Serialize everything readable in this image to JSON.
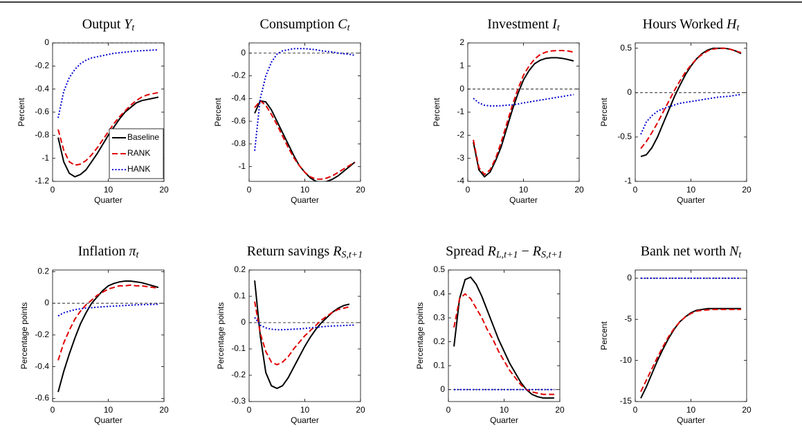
{
  "chart_data": [
    {
      "type": "line",
      "title": [
        {
          "text": "Output ",
          "style": "normal"
        },
        {
          "text": "Y",
          "style": "italic"
        },
        {
          "text": "t",
          "style": "sub"
        }
      ],
      "xlabel": "Quarter",
      "ylabel": "Percent",
      "x": [
        1,
        2,
        3,
        4,
        5,
        6,
        7,
        8,
        9,
        10,
        11,
        12,
        13,
        14,
        15,
        16,
        17,
        18,
        19
      ],
      "xlim": [
        0,
        20
      ],
      "xticks": [
        0,
        10,
        20
      ],
      "ylim": [
        -1.2,
        0
      ],
      "yticks": [
        -1.2,
        -1,
        -0.8,
        -0.6,
        -0.4,
        -0.2,
        0
      ],
      "legend": "lower right",
      "series": [
        {
          "name": "Baseline",
          "color": "#000000",
          "dash": "solid",
          "values": [
            -0.82,
            -1.03,
            -1.13,
            -1.16,
            -1.14,
            -1.1,
            -1.03,
            -0.96,
            -0.88,
            -0.8,
            -0.73,
            -0.66,
            -0.6,
            -0.56,
            -0.52,
            -0.5,
            -0.49,
            -0.48,
            -0.47
          ]
        },
        {
          "name": "RANK",
          "color": "#e00000",
          "dash": "dashed",
          "values": [
            -0.75,
            -0.93,
            -1.03,
            -1.06,
            -1.05,
            -1.02,
            -0.97,
            -0.91,
            -0.84,
            -0.77,
            -0.7,
            -0.64,
            -0.59,
            -0.54,
            -0.5,
            -0.47,
            -0.45,
            -0.44,
            -0.43
          ]
        },
        {
          "name": "HANK",
          "color": "#0000d0",
          "dash": "dotted",
          "values": [
            -0.65,
            -0.42,
            -0.3,
            -0.23,
            -0.18,
            -0.15,
            -0.13,
            -0.12,
            -0.11,
            -0.1,
            -0.09,
            -0.085,
            -0.08,
            -0.075,
            -0.07,
            -0.067,
            -0.065,
            -0.062,
            -0.06
          ]
        }
      ]
    },
    {
      "type": "line",
      "title": [
        {
          "text": "Consumption ",
          "style": "normal"
        },
        {
          "text": "C",
          "style": "italic"
        },
        {
          "text": "t",
          "style": "sub"
        }
      ],
      "xlabel": "Quarter",
      "ylabel": "Percent",
      "x": [
        1,
        2,
        3,
        4,
        5,
        6,
        7,
        8,
        9,
        10,
        11,
        12,
        13,
        14,
        15,
        16,
        17,
        18,
        19
      ],
      "xlim": [
        0,
        20
      ],
      "xticks": [
        0,
        10,
        20
      ],
      "ylim": [
        -1.13,
        0.09
      ],
      "yticks": [
        -1,
        -0.8,
        -0.6,
        -0.4,
        -0.2,
        0
      ],
      "series": [
        {
          "name": "Baseline",
          "color": "#000000",
          "dash": "solid",
          "values": [
            -0.53,
            -0.42,
            -0.43,
            -0.5,
            -0.6,
            -0.7,
            -0.8,
            -0.9,
            -0.99,
            -1.05,
            -1.1,
            -1.13,
            -1.14,
            -1.13,
            -1.11,
            -1.08,
            -1.04,
            -1.0,
            -0.96
          ]
        },
        {
          "name": "RANK",
          "color": "#e00000",
          "dash": "dashed",
          "values": [
            -0.48,
            -0.42,
            -0.46,
            -0.54,
            -0.63,
            -0.73,
            -0.83,
            -0.92,
            -0.99,
            -1.05,
            -1.09,
            -1.11,
            -1.11,
            -1.1,
            -1.08,
            -1.05,
            -1.02,
            -0.99,
            -0.96
          ]
        },
        {
          "name": "HANK",
          "color": "#0000d0",
          "dash": "dotted",
          "values": [
            -0.86,
            -0.4,
            -0.2,
            -0.08,
            -0.01,
            0.02,
            0.03,
            0.04,
            0.04,
            0.04,
            0.035,
            0.03,
            0.02,
            0.015,
            0.01,
            0.0,
            -0.005,
            -0.01,
            -0.02
          ]
        }
      ]
    },
    {
      "type": "line",
      "title": [
        {
          "text": "Investment ",
          "style": "normal"
        },
        {
          "text": "I",
          "style": "italic"
        },
        {
          "text": "t",
          "style": "sub"
        }
      ],
      "xlabel": "Quarter",
      "ylabel": "Percent",
      "x": [
        1,
        2,
        3,
        4,
        5,
        6,
        7,
        8,
        9,
        10,
        11,
        12,
        13,
        14,
        15,
        16,
        17,
        18,
        19
      ],
      "xlim": [
        0,
        20
      ],
      "xticks": [
        0,
        10,
        20
      ],
      "ylim": [
        -4,
        2
      ],
      "yticks": [
        -4,
        -3,
        -2,
        -1,
        0,
        1,
        2
      ],
      "series": [
        {
          "name": "Baseline",
          "color": "#000000",
          "dash": "solid",
          "values": [
            -2.3,
            -3.5,
            -3.8,
            -3.6,
            -3.1,
            -2.5,
            -1.7,
            -0.9,
            -0.2,
            0.4,
            0.8,
            1.1,
            1.25,
            1.33,
            1.36,
            1.36,
            1.33,
            1.28,
            1.22
          ]
        },
        {
          "name": "RANK",
          "color": "#e00000",
          "dash": "dashed",
          "values": [
            -2.2,
            -3.4,
            -3.7,
            -3.5,
            -3.0,
            -2.3,
            -1.5,
            -0.7,
            0.0,
            0.6,
            1.0,
            1.3,
            1.5,
            1.6,
            1.65,
            1.67,
            1.67,
            1.65,
            1.6
          ]
        },
        {
          "name": "HANK",
          "color": "#0000d0",
          "dash": "dotted",
          "values": [
            -0.4,
            -0.6,
            -0.7,
            -0.73,
            -0.73,
            -0.72,
            -0.7,
            -0.68,
            -0.65,
            -0.6,
            -0.56,
            -0.52,
            -0.48,
            -0.44,
            -0.4,
            -0.36,
            -0.32,
            -0.28,
            -0.24
          ]
        }
      ]
    },
    {
      "type": "line",
      "title": [
        {
          "text": "Hours Worked ",
          "style": "normal"
        },
        {
          "text": "H",
          "style": "italic"
        },
        {
          "text": "t",
          "style": "sub"
        }
      ],
      "xlabel": "Quarter",
      "ylabel": "Percent",
      "x": [
        1,
        2,
        3,
        4,
        5,
        6,
        7,
        8,
        9,
        10,
        11,
        12,
        13,
        14,
        15,
        16,
        17,
        18,
        19
      ],
      "xlim": [
        0,
        20
      ],
      "xticks": [
        0,
        10,
        20
      ],
      "ylim": [
        -1,
        0.56
      ],
      "yticks": [
        -1,
        -0.5,
        0,
        0.5
      ],
      "series": [
        {
          "name": "Baseline",
          "color": "#000000",
          "dash": "solid",
          "values": [
            -0.72,
            -0.7,
            -0.62,
            -0.5,
            -0.35,
            -0.2,
            -0.05,
            0.08,
            0.2,
            0.3,
            0.38,
            0.44,
            0.48,
            0.5,
            0.5,
            0.5,
            0.49,
            0.47,
            0.44
          ]
        },
        {
          "name": "RANK",
          "color": "#e00000",
          "dash": "dashed",
          "values": [
            -0.63,
            -0.55,
            -0.45,
            -0.34,
            -0.22,
            -0.1,
            0.02,
            0.13,
            0.23,
            0.31,
            0.38,
            0.43,
            0.47,
            0.49,
            0.5,
            0.5,
            0.49,
            0.47,
            0.45
          ]
        },
        {
          "name": "HANK",
          "color": "#0000d0",
          "dash": "dotted",
          "values": [
            -0.47,
            -0.33,
            -0.26,
            -0.21,
            -0.18,
            -0.16,
            -0.14,
            -0.12,
            -0.11,
            -0.1,
            -0.09,
            -0.08,
            -0.07,
            -0.06,
            -0.05,
            -0.045,
            -0.04,
            -0.03,
            -0.02
          ]
        }
      ]
    },
    {
      "type": "line",
      "title": [
        {
          "text": "Inflation ",
          "style": "normal"
        },
        {
          "text": "π",
          "style": "italic"
        },
        {
          "text": "t",
          "style": "sub"
        }
      ],
      "xlabel": "Quarter",
      "ylabel": "Percentage points",
      "x": [
        1,
        2,
        3,
        4,
        5,
        6,
        7,
        8,
        9,
        10,
        11,
        12,
        13,
        14,
        15,
        16,
        17,
        18,
        19
      ],
      "xlim": [
        0,
        20
      ],
      "xticks": [
        0,
        10,
        20
      ],
      "ylim": [
        -0.62,
        0.21
      ],
      "yticks": [
        -0.6,
        -0.4,
        -0.2,
        0,
        0.2
      ],
      "series": [
        {
          "name": "Baseline",
          "color": "#000000",
          "dash": "solid",
          "values": [
            -0.56,
            -0.43,
            -0.32,
            -0.22,
            -0.13,
            -0.06,
            0.0,
            0.04,
            0.08,
            0.11,
            0.125,
            0.135,
            0.14,
            0.14,
            0.135,
            0.13,
            0.12,
            0.11,
            0.1
          ]
        },
        {
          "name": "RANK",
          "color": "#e00000",
          "dash": "dashed",
          "values": [
            -0.36,
            -0.25,
            -0.17,
            -0.1,
            -0.05,
            -0.01,
            0.02,
            0.05,
            0.07,
            0.09,
            0.1,
            0.11,
            0.11,
            0.115,
            0.11,
            0.11,
            0.105,
            0.1,
            0.095
          ]
        },
        {
          "name": "HANK",
          "color": "#0000d0",
          "dash": "dotted",
          "values": [
            -0.08,
            -0.06,
            -0.05,
            -0.04,
            -0.035,
            -0.03,
            -0.028,
            -0.025,
            -0.022,
            -0.02,
            -0.018,
            -0.016,
            -0.014,
            -0.012,
            -0.01,
            -0.009,
            -0.008,
            -0.007,
            -0.006
          ]
        }
      ]
    },
    {
      "type": "line",
      "title": [
        {
          "text": "Return savings ",
          "style": "normal"
        },
        {
          "text": "R",
          "style": "italic"
        },
        {
          "text": "S,t+1",
          "style": "sub"
        }
      ],
      "xlabel": "Quarter",
      "ylabel": "Percentage points",
      "x": [
        1,
        2,
        3,
        4,
        5,
        6,
        7,
        8,
        9,
        10,
        11,
        12,
        13,
        14,
        15,
        16,
        17,
        18,
        19
      ],
      "xlim": [
        0,
        20
      ],
      "xticks": [
        0,
        10,
        20
      ],
      "ylim": [
        -0.3,
        0.2
      ],
      "yticks": [
        -0.3,
        -0.2,
        -0.1,
        0,
        0.1,
        0.2
      ],
      "series": [
        {
          "name": "Baseline",
          "color": "#000000",
          "dash": "solid",
          "values": [
            0.16,
            -0.05,
            -0.19,
            -0.24,
            -0.25,
            -0.24,
            -0.21,
            -0.17,
            -0.13,
            -0.09,
            -0.055,
            -0.025,
            0.0,
            0.02,
            0.04,
            0.055,
            0.065,
            0.07,
            null
          ]
        },
        {
          "name": "RANK",
          "color": "#e00000",
          "dash": "dashed",
          "values": [
            0.08,
            -0.04,
            -0.11,
            -0.15,
            -0.16,
            -0.15,
            -0.13,
            -0.1,
            -0.075,
            -0.05,
            -0.03,
            -0.01,
            0.01,
            0.025,
            0.04,
            0.05,
            0.055,
            0.06,
            null
          ]
        },
        {
          "name": "HANK",
          "color": "#0000d0",
          "dash": "dotted",
          "values": [
            0.02,
            -0.01,
            -0.02,
            -0.025,
            -0.027,
            -0.027,
            -0.026,
            -0.025,
            -0.024,
            -0.022,
            -0.02,
            -0.018,
            -0.016,
            -0.014,
            -0.013,
            -0.012,
            -0.011,
            -0.01,
            -0.009
          ]
        }
      ]
    },
    {
      "type": "line",
      "title": [
        {
          "text": "Spread ",
          "style": "normal"
        },
        {
          "text": "R",
          "style": "italic"
        },
        {
          "text": "L,t+1",
          "style": "sub"
        },
        {
          "text": " − ",
          "style": "normal"
        },
        {
          "text": "R",
          "style": "italic"
        },
        {
          "text": "S,t+1",
          "style": "sub"
        }
      ],
      "xlabel": "Quarter",
      "ylabel": "Percentage points",
      "x": [
        1,
        2,
        3,
        4,
        5,
        6,
        7,
        8,
        9,
        10,
        11,
        12,
        13,
        14,
        15,
        16,
        17,
        18,
        19
      ],
      "xlim": [
        0,
        20
      ],
      "xticks": [
        0,
        10,
        20
      ],
      "ylim": [
        -0.05,
        0.5
      ],
      "yticks": [
        0,
        0.1,
        0.2,
        0.3,
        0.4,
        0.5
      ],
      "series": [
        {
          "name": "Baseline",
          "color": "#000000",
          "dash": "solid",
          "values": [
            0.18,
            0.38,
            0.46,
            0.47,
            0.44,
            0.39,
            0.33,
            0.27,
            0.21,
            0.16,
            0.11,
            0.07,
            0.03,
            0.0,
            -0.02,
            -0.03,
            -0.035,
            -0.035,
            -0.035
          ]
        },
        {
          "name": "RANK",
          "color": "#e00000",
          "dash": "dashed",
          "values": [
            0.26,
            0.38,
            0.4,
            0.38,
            0.34,
            0.3,
            0.25,
            0.21,
            0.16,
            0.12,
            0.08,
            0.05,
            0.02,
            0.0,
            -0.01,
            -0.015,
            -0.02,
            -0.02,
            -0.02
          ]
        },
        {
          "name": "HANK",
          "color": "#0000d0",
          "dash": "dotted",
          "values": [
            0,
            0,
            0,
            0,
            0,
            0,
            0,
            0,
            0,
            0,
            0,
            0,
            0,
            0,
            0,
            0,
            0,
            0,
            0
          ]
        }
      ]
    },
    {
      "type": "line",
      "title": [
        {
          "text": "Bank net worth ",
          "style": "normal"
        },
        {
          "text": "N",
          "style": "italic"
        },
        {
          "text": "t",
          "style": "sub"
        }
      ],
      "xlabel": "Quarter",
      "ylabel": "Percent",
      "x": [
        1,
        2,
        3,
        4,
        5,
        6,
        7,
        8,
        9,
        10,
        11,
        12,
        13,
        14,
        15,
        16,
        17,
        18,
        19
      ],
      "xlim": [
        0,
        20
      ],
      "xticks": [
        0,
        10,
        20
      ],
      "ylim": [
        -15,
        1
      ],
      "yticks": [
        -15,
        -10,
        -5,
        0
      ],
      "series": [
        {
          "name": "Baseline",
          "color": "#000000",
          "dash": "solid",
          "values": [
            -14.6,
            -13.2,
            -11.6,
            -10.0,
            -8.6,
            -7.3,
            -6.2,
            -5.3,
            -4.7,
            -4.2,
            -3.9,
            -3.8,
            -3.7,
            -3.7,
            -3.7,
            -3.7,
            -3.7,
            -3.7,
            -3.7
          ]
        },
        {
          "name": "RANK",
          "color": "#e00000",
          "dash": "dashed",
          "values": [
            -13.8,
            -12.4,
            -11.0,
            -9.6,
            -8.3,
            -7.1,
            -6.1,
            -5.3,
            -4.7,
            -4.3,
            -4.0,
            -3.9,
            -3.85,
            -3.8,
            -3.8,
            -3.8,
            -3.8,
            -3.8,
            -3.8
          ]
        },
        {
          "name": "HANK",
          "color": "#0000d0",
          "dash": "dotted",
          "values": [
            0,
            0,
            0,
            0,
            0,
            0,
            0,
            0,
            0,
            0,
            0,
            0,
            0,
            0,
            0,
            0,
            0,
            0,
            0
          ]
        }
      ]
    }
  ]
}
